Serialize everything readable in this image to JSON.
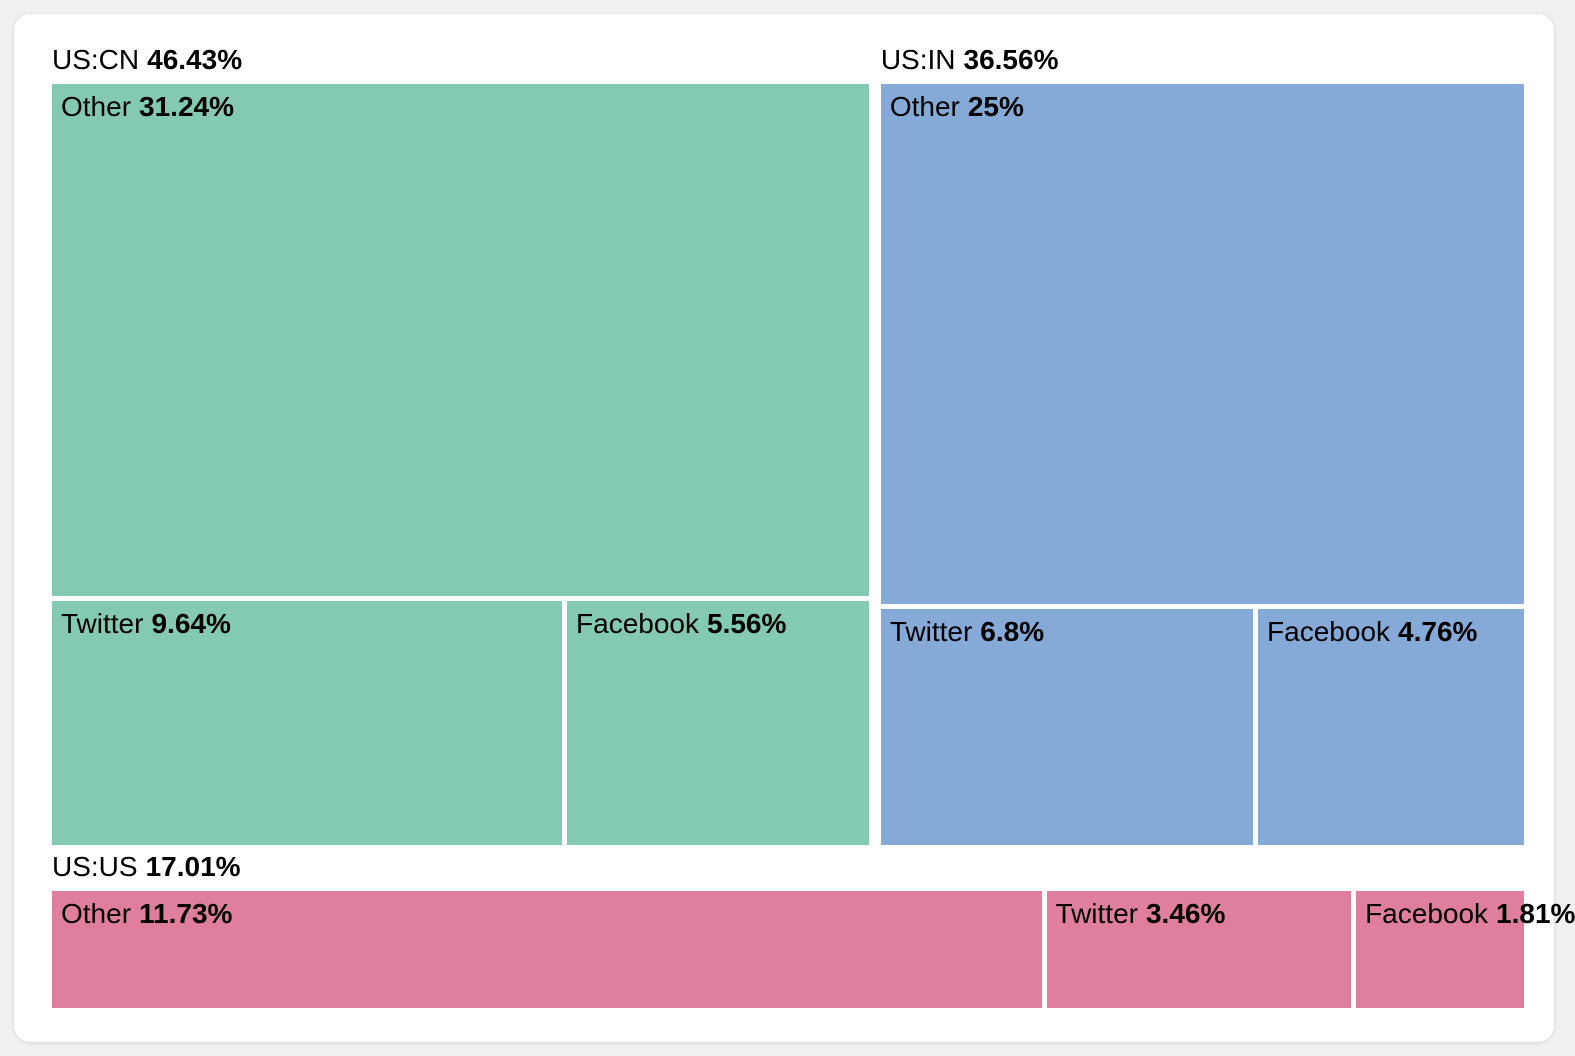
{
  "page": {
    "background_color": "#f0f0f3",
    "card_background_color": "#ffffff"
  },
  "chart_data": {
    "type": "treemap",
    "title": "",
    "legend": "none",
    "grid": "off",
    "text_color": "#000000",
    "groups": [
      {
        "name": "US:CN",
        "value": 46.43,
        "value_label": "46.43%",
        "color": "#84c9b2",
        "layout": "stack",
        "children": [
          {
            "name": "Other",
            "value": 31.24,
            "value_label": "31.24%"
          },
          {
            "name": "Twitter",
            "value": 9.64,
            "value_label": "9.64%"
          },
          {
            "name": "Facebook",
            "value": 5.56,
            "value_label": "5.56%"
          }
        ]
      },
      {
        "name": "US:IN",
        "value": 36.56,
        "value_label": "36.56%",
        "color": "#85aad7",
        "layout": "stack",
        "children": [
          {
            "name": "Other",
            "value": 25,
            "value_label": "25%"
          },
          {
            "name": "Twitter",
            "value": 6.8,
            "value_label": "6.8%"
          },
          {
            "name": "Facebook",
            "value": 4.76,
            "value_label": "4.76%"
          }
        ]
      },
      {
        "name": "US:US",
        "value": 17.01,
        "value_label": "17.01%",
        "color": "#df7f9d",
        "layout": "row",
        "children": [
          {
            "name": "Other",
            "value": 11.73,
            "value_label": "11.73%"
          },
          {
            "name": "Twitter",
            "value": 3.46,
            "value_label": "3.46%"
          },
          {
            "name": "Facebook",
            "value": 1.81,
            "value_label": "1.81%"
          }
        ]
      }
    ]
  }
}
